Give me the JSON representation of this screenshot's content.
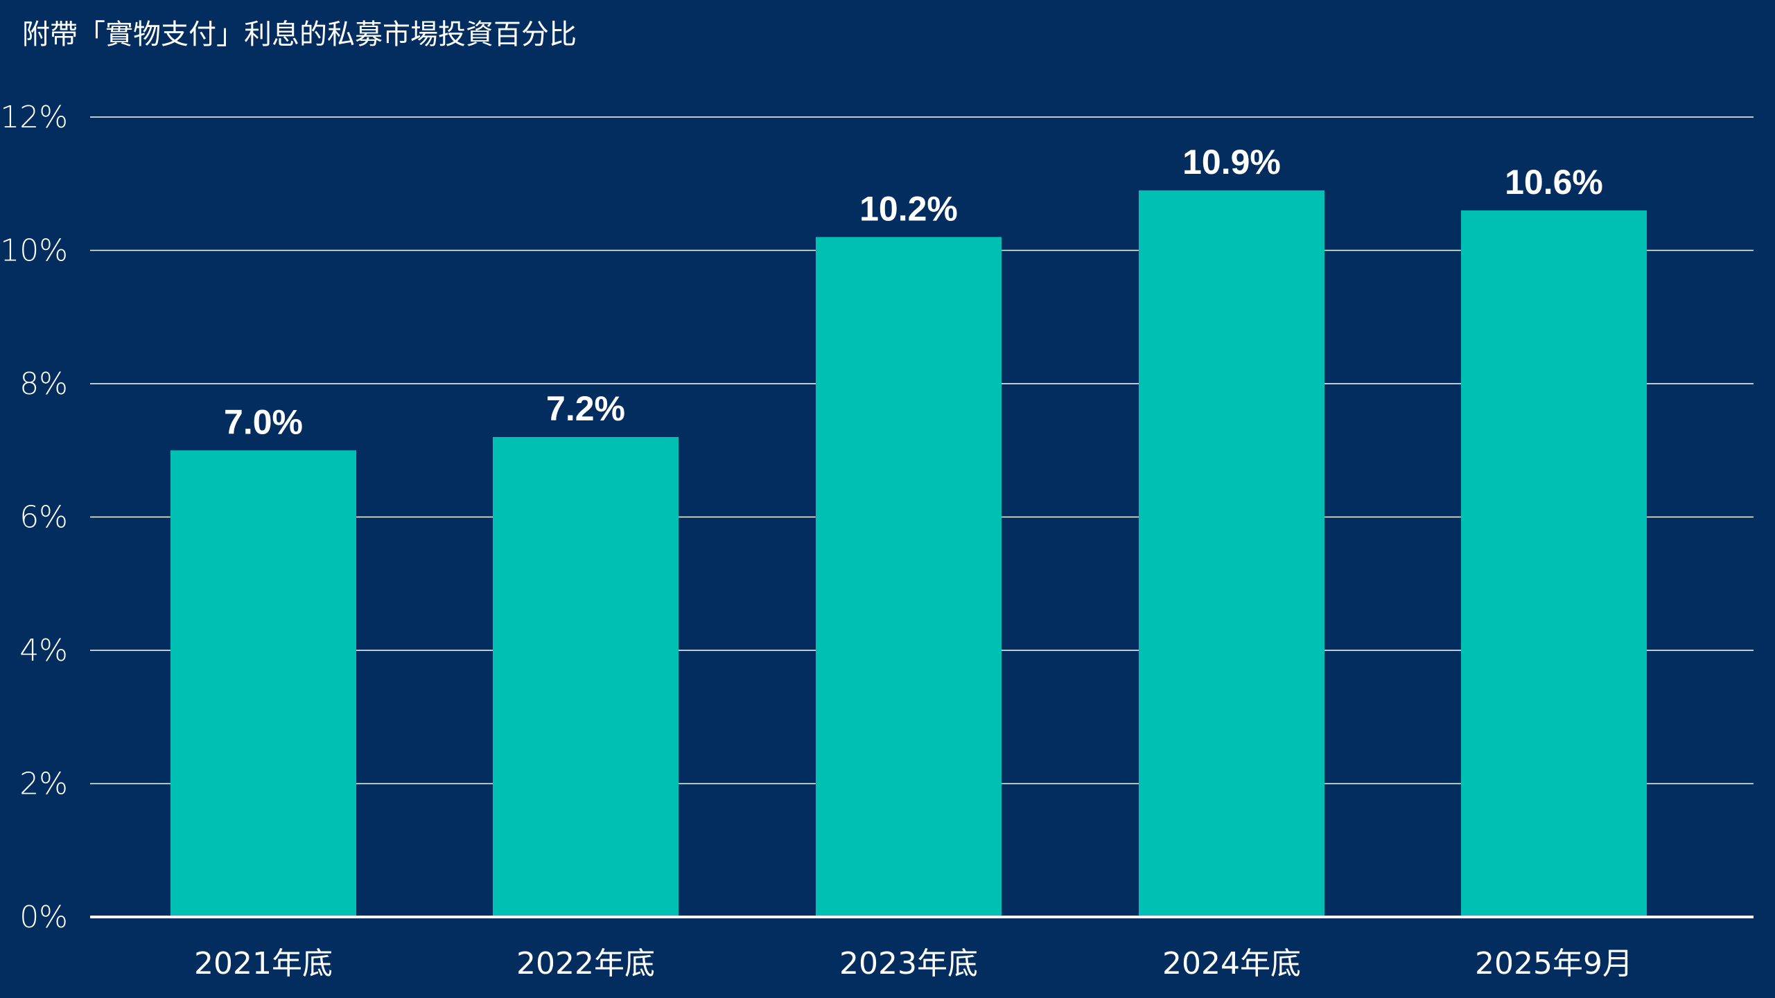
{
  "chart_data": {
    "type": "bar",
    "title": "附帶「實物支付」利息的私募市場投資百分比",
    "categories": [
      "2021年底",
      "2022年底",
      "2023年底",
      "2024年底",
      "2025年9月"
    ],
    "values": [
      7.0,
      7.2,
      10.2,
      10.9,
      10.6
    ],
    "value_labels": [
      "7.0%",
      "7.2%",
      "10.2%",
      "10.9%",
      "10.6%"
    ],
    "y_ticks": [
      0,
      2,
      4,
      6,
      8,
      10,
      12
    ],
    "y_tick_labels": [
      "0%",
      "2%",
      "4%",
      "6%",
      "8%",
      "10%",
      "12%"
    ],
    "ylim": [
      0,
      12
    ],
    "xlabel": "",
    "ylabel": "",
    "grid": true,
    "colors": {
      "background": "#022D5E",
      "bar": "#00BFB3",
      "gridline": "#FFFFFF",
      "text": "#FFFFFF"
    }
  }
}
